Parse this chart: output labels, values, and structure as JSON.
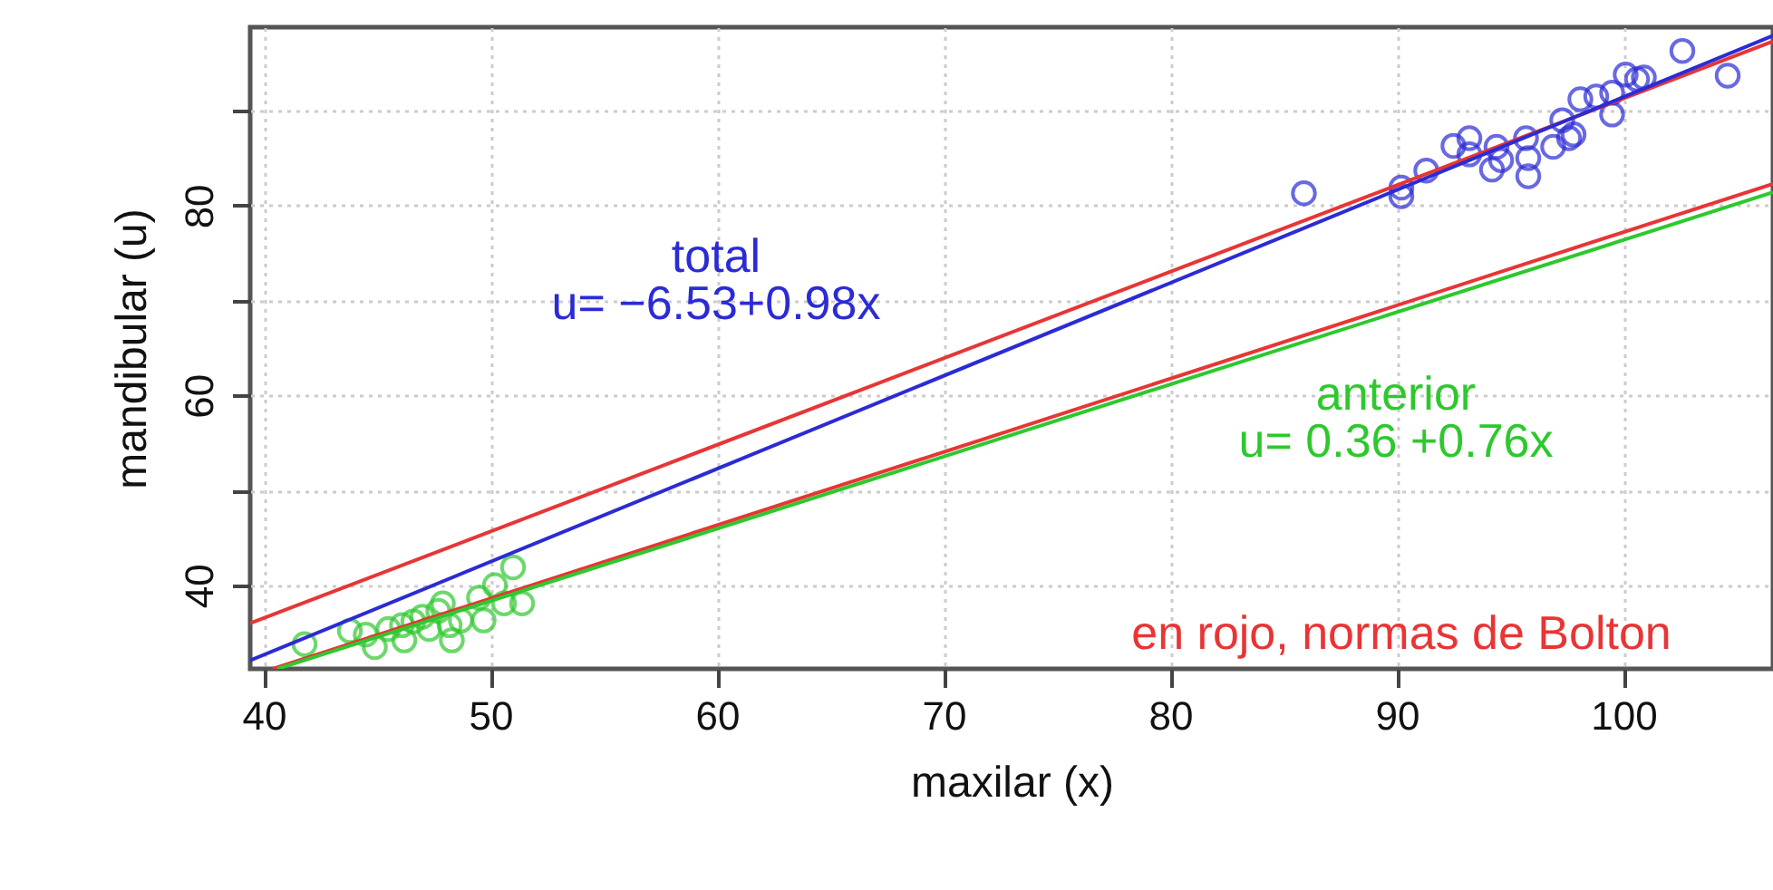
{
  "chart_data": {
    "type": "scatter",
    "xlabel": "maxilar (x)",
    "ylabel": "mandibular (u)",
    "xlim": [
      39.4,
      106.6
    ],
    "ylim": [
      31.2,
      98.8
    ],
    "xticks": [
      40,
      50,
      60,
      70,
      80,
      90,
      100
    ],
    "yticks": [
      40,
      {
        "value": 50,
        "label": null
      },
      60,
      {
        "value": 70,
        "label": null
      },
      80,
      {
        "value": 90,
        "label": null
      }
    ],
    "grid": true,
    "series": [
      {
        "marker": "circle",
        "color": "#2b2bd6",
        "x": [
          85.9,
          90.2,
          90.2,
          91.3,
          92.5,
          93.2,
          93.2,
          94.4,
          94.2,
          94.6,
          95.7,
          95.8,
          95.8,
          96.9,
          97.3,
          97.6,
          97.8,
          98.1,
          98.8,
          99.5,
          99.5,
          100.1,
          100.6,
          100.9,
          102.6,
          104.6
        ],
        "values": [
          81.3,
          81.9,
          81.0,
          83.7,
          86.3,
          87.1,
          85.4,
          86.2,
          83.8,
          84.8,
          87.1,
          85.0,
          83.1,
          86.2,
          89.0,
          87.1,
          87.5,
          91.2,
          91.5,
          89.6,
          91.9,
          93.8,
          93.3,
          93.5,
          96.3,
          93.7
        ]
      },
      {
        "marker": "circle",
        "color": "#2ec82e",
        "x": [
          41.8,
          43.8,
          44.5,
          44.9,
          45.5,
          46.1,
          46.2,
          46.6,
          47.0,
          47.3,
          47.7,
          47.9,
          48.2,
          48.3,
          48.7,
          49.5,
          49.7,
          50.2,
          50.6,
          51.0,
          51.4
        ],
        "values": [
          33.8,
          35.2,
          34.8,
          33.5,
          35.4,
          35.8,
          34.2,
          36.2,
          36.7,
          35.4,
          37.3,
          38.1,
          35.8,
          34.2,
          36.3,
          38.7,
          36.3,
          40.0,
          38.1,
          41.9,
          38.1
        ]
      },
      {
        "type": "line",
        "color": "#e83535",
        "x": [
          39.4,
          106.6
        ],
        "values": [
          36.0,
          97.3
        ]
      },
      {
        "type": "line",
        "color": "#e83535",
        "x": [
          40.4,
          106.6
        ],
        "values": [
          31.2,
          82.3
        ]
      },
      {
        "type": "line",
        "color": "#2b2bd6",
        "x": [
          39.4,
          106.6
        ],
        "values": [
          32.1,
          97.9
        ]
      },
      {
        "type": "line",
        "color": "#2ec82e",
        "x": [
          40.6,
          106.6
        ],
        "values": [
          31.2,
          81.4
        ]
      }
    ],
    "annotations": [
      "total",
      "u= −6.53+0.98x",
      "anterior",
      "u= 0.36 +0.76x",
      "en rojo, normas de Bolton"
    ]
  }
}
